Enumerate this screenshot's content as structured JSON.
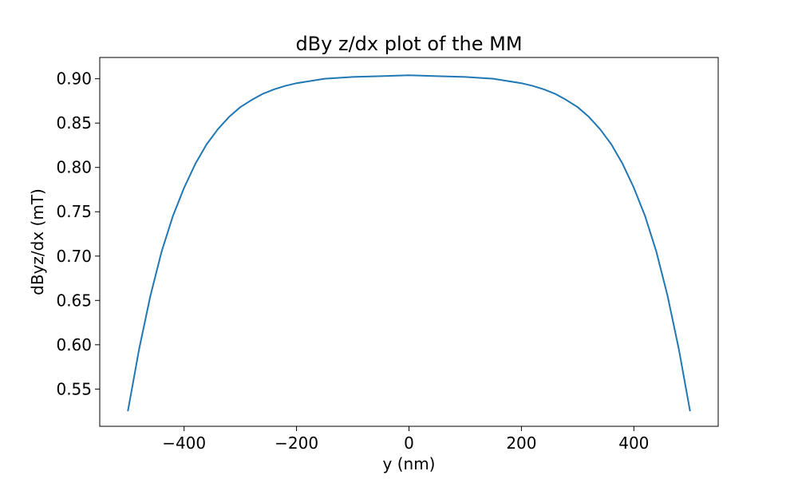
{
  "chart_data": {
    "type": "line",
    "title": "dBy z/dx plot of the MM",
    "xlabel": "y (nm)",
    "ylabel": "dByz/dx (mT)",
    "xlim": [
      -550,
      550
    ],
    "ylim": [
      0.508,
      0.924
    ],
    "grid": false,
    "xticks": [
      -400,
      -200,
      0,
      200,
      400
    ],
    "xtick_labels": [
      "−400",
      "−200",
      "0",
      "200",
      "400"
    ],
    "yticks": [
      0.55,
      0.6,
      0.65,
      0.7,
      0.75,
      0.8,
      0.85,
      0.9
    ],
    "ytick_labels": [
      "0.55",
      "0.60",
      "0.65",
      "0.70",
      "0.75",
      "0.80",
      "0.85",
      "0.90"
    ],
    "series": [
      {
        "color": "#1f77b4",
        "x": [
          -500,
          -480,
          -460,
          -440,
          -420,
          -400,
          -380,
          -360,
          -340,
          -320,
          -300,
          -280,
          -260,
          -240,
          -220,
          -200,
          -150,
          -100,
          -50,
          0,
          50,
          100,
          150,
          200,
          220,
          240,
          260,
          280,
          300,
          320,
          340,
          360,
          380,
          400,
          420,
          440,
          460,
          480,
          500
        ],
        "y": [
          0.525,
          0.595,
          0.655,
          0.705,
          0.745,
          0.777,
          0.804,
          0.826,
          0.843,
          0.857,
          0.868,
          0.876,
          0.883,
          0.888,
          0.892,
          0.895,
          0.9,
          0.902,
          0.903,
          0.904,
          0.903,
          0.902,
          0.9,
          0.895,
          0.892,
          0.888,
          0.883,
          0.876,
          0.868,
          0.857,
          0.843,
          0.826,
          0.804,
          0.777,
          0.745,
          0.705,
          0.655,
          0.595,
          0.525
        ]
      }
    ]
  }
}
